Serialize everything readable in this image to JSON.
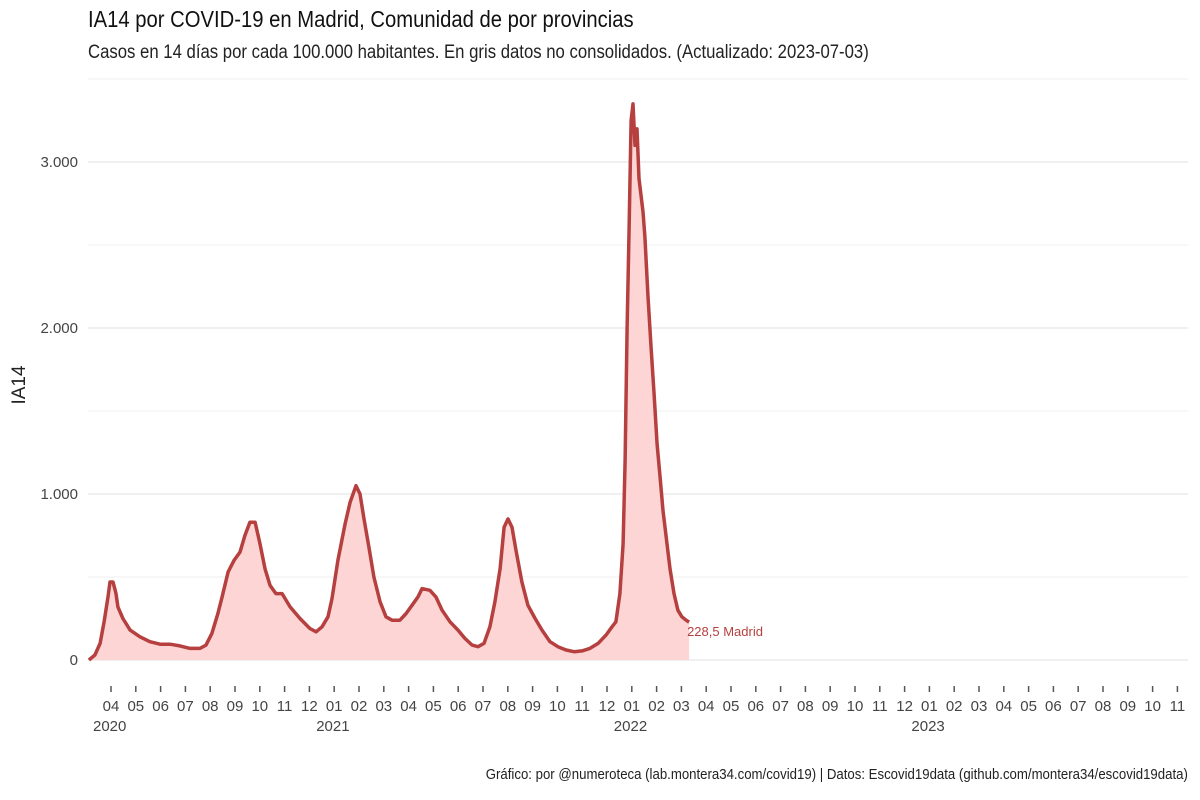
{
  "chart_data": {
    "type": "area",
    "title": "IA14 por COVID-19 en Madrid, Comunidad de por provincias",
    "subtitle": "Casos en 14 días por cada 100.000 habitantes.  En gris datos no consolidados. (Actualizado: 2023-07-03)",
    "caption": "Gráfico: por @numeroteca (lab.montera34.com/covid19) | Datos: Escovid19data (github.com/montera34/escovid19data)",
    "ylabel": "IA14",
    "xlabel": "",
    "x_unit": "months since 2020-04-01",
    "xlim": [
      -0.9,
      43.3
    ],
    "ylim": [
      0,
      3500
    ],
    "yticks": [
      {
        "v": 0,
        "label": "0"
      },
      {
        "v": 1000,
        "label": "1.000"
      },
      {
        "v": 2000,
        "label": "2.000"
      },
      {
        "v": 3000,
        "label": "3.000"
      }
    ],
    "xtick_labels": [
      "04",
      "05",
      "06",
      "07",
      "08",
      "09",
      "10",
      "11",
      "12",
      "01",
      "02",
      "03",
      "04",
      "05",
      "06",
      "07",
      "08",
      "09",
      "10",
      "11",
      "12",
      "01",
      "02",
      "03",
      "04",
      "05",
      "06",
      "07",
      "08",
      "09",
      "10",
      "11",
      "12",
      "01",
      "02",
      "03",
      "04",
      "05",
      "06",
      "07",
      "08",
      "09",
      "10",
      "11"
    ],
    "year_labels": [
      {
        "m": 0,
        "label": "2020"
      },
      {
        "m": 9,
        "label": "2021"
      },
      {
        "m": 21,
        "label": "2022"
      },
      {
        "m": 33,
        "label": "2023"
      }
    ],
    "grid": true,
    "colors": {
      "line": "#b5403f",
      "fill": "#fcd5d4",
      "grid": "#ebebeb"
    },
    "series": [
      {
        "name": "Madrid",
        "end_label": "228,5  Madrid",
        "x": [
          -0.89,
          -0.65,
          -0.44,
          -0.28,
          -0.12,
          -0.04,
          0.08,
          0.2,
          0.28,
          0.48,
          0.77,
          1.17,
          1.57,
          1.98,
          2.38,
          2.78,
          3.19,
          3.59,
          3.83,
          4.07,
          4.31,
          4.48,
          4.72,
          4.96,
          5.2,
          5.4,
          5.6,
          5.81,
          6.01,
          6.21,
          6.41,
          6.65,
          6.9,
          7.22,
          7.62,
          8.02,
          8.27,
          8.51,
          8.75,
          8.91,
          9.15,
          9.44,
          9.64,
          9.88,
          10.04,
          10.2,
          10.4,
          10.6,
          10.85,
          11.09,
          11.33,
          11.65,
          11.9,
          12.14,
          12.38,
          12.54,
          12.86,
          13.1,
          13.35,
          13.67,
          13.99,
          14.27,
          14.56,
          14.8,
          15.04,
          15.28,
          15.48,
          15.69,
          15.85,
          16.01,
          16.17,
          16.33,
          16.57,
          16.81,
          17.1,
          17.38,
          17.7,
          18.02,
          18.35,
          18.67,
          18.99,
          19.31,
          19.64,
          19.96,
          20.2,
          20.36,
          20.52,
          20.65,
          20.73,
          20.81,
          20.89,
          20.97,
          21.05,
          21.13,
          21.21,
          21.29,
          21.37,
          21.45,
          21.53,
          21.65,
          21.77,
          21.9,
          22.02,
          22.14,
          22.26,
          22.42,
          22.54,
          22.7,
          22.86,
          23.02,
          23.19,
          23.31
        ],
        "y": [
          0,
          30,
          100,
          230,
          380,
          470,
          470,
          400,
          320,
          250,
          180,
          140,
          110,
          95,
          95,
          85,
          70,
          70,
          90,
          160,
          280,
          380,
          530,
          600,
          650,
          750,
          830,
          830,
          700,
          550,
          450,
          400,
          400,
          320,
          250,
          190,
          170,
          200,
          260,
          370,
          600,
          820,
          950,
          1050,
          1000,
          850,
          680,
          500,
          350,
          260,
          240,
          240,
          280,
          330,
          380,
          430,
          420,
          380,
          300,
          230,
          180,
          130,
          90,
          80,
          100,
          200,
          350,
          550,
          800,
          850,
          800,
          660,
          470,
          330,
          250,
          180,
          110,
          80,
          60,
          50,
          55,
          70,
          100,
          150,
          200,
          230,
          400,
          700,
          1200,
          2000,
          2600,
          3250,
          3350,
          3100,
          3200,
          2900,
          2800,
          2700,
          2550,
          2200,
          1900,
          1600,
          1300,
          1100,
          900,
          700,
          550,
          400,
          300,
          260,
          240,
          228.5
        ]
      }
    ]
  }
}
